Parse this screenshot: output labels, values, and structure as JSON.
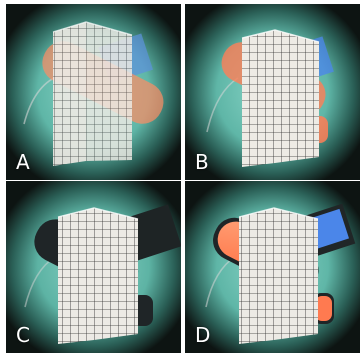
{
  "figure": {
    "panels": [
      {
        "label": "A",
        "variant": "original"
      },
      {
        "label": "B",
        "variant": "ghost-removed"
      },
      {
        "label": "C",
        "variant": "dark-mask"
      },
      {
        "label": "D",
        "variant": "reinserted"
      }
    ]
  },
  "colors": {
    "background": "#ffffff",
    "vignette_dark": "#0d1412",
    "vignette_teal": "#58b3a2",
    "cube_face": "#e8e5df",
    "grid_line": "#3a3a3a",
    "orange_cylinder": "#ff7b4e",
    "blue_shape": "#4a83e8",
    "dark_shape": "#1d2324",
    "label_text": "#ffffff"
  },
  "icons": [
    "none"
  ]
}
